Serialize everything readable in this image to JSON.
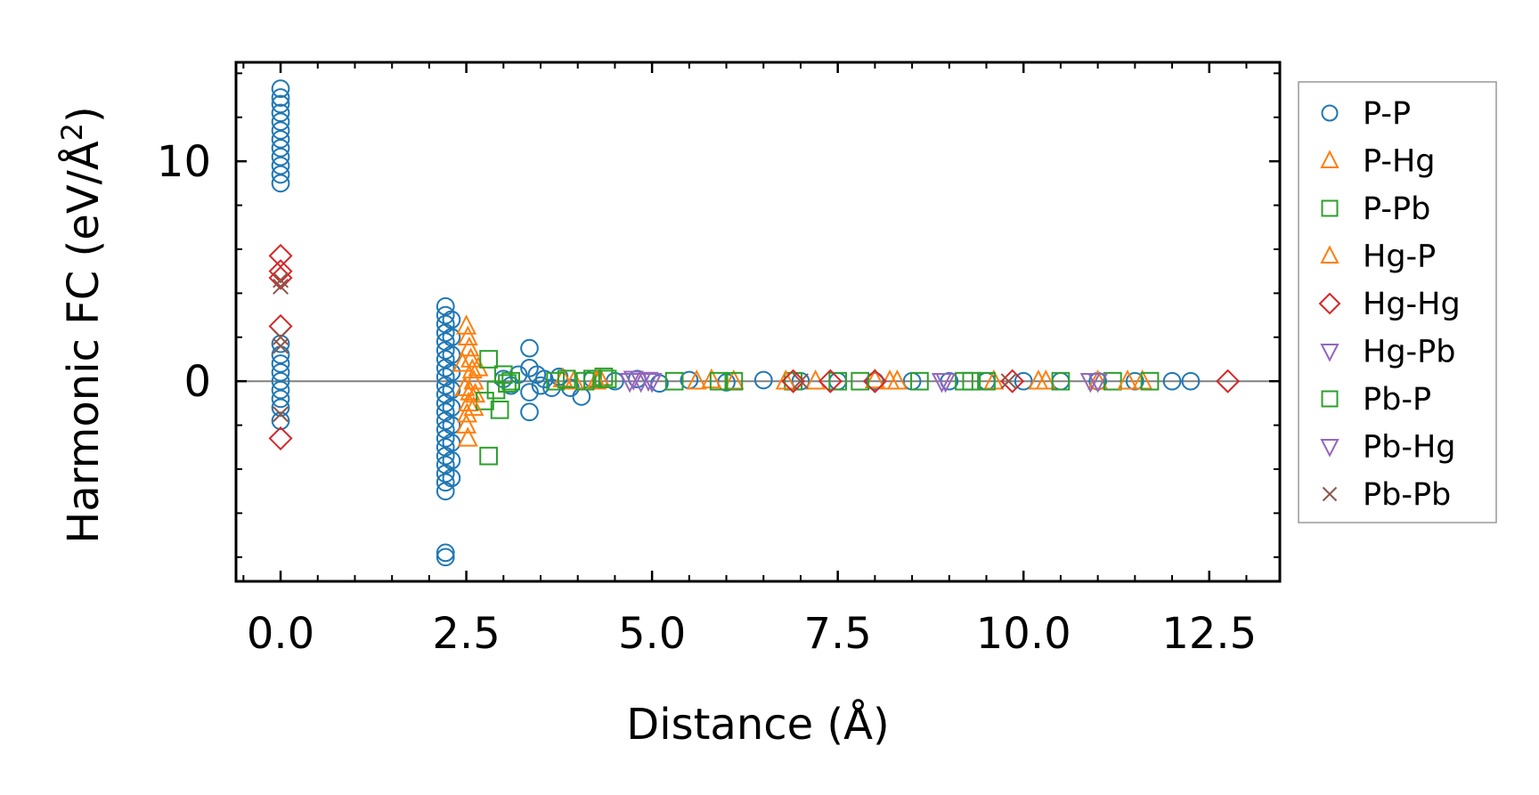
{
  "chart_data": {
    "type": "scatter",
    "title": "",
    "xlabel": "Distance (Å)",
    "ylabel_main": "Harmonic FC (eV/Å",
    "ylabel_sup": "2",
    "ylabel_close": ")",
    "xlim": [
      -0.6,
      13.45
    ],
    "ylim": [
      -9.1,
      14.5
    ],
    "xticks": [
      0.0,
      2.5,
      5.0,
      7.5,
      10.0,
      12.5
    ],
    "xtick_labels": [
      "0.0",
      "2.5",
      "5.0",
      "7.5",
      "10.0",
      "12.5"
    ],
    "yticks": [
      0,
      10
    ],
    "ytick_labels": [
      "0",
      "10"
    ],
    "zero_line": true,
    "legend_position": "right-outside",
    "series": [
      {
        "name": "P-P",
        "color": "#1f77b4",
        "marker": "circle",
        "points": [
          [
            0,
            13.3
          ],
          [
            0,
            12.9
          ],
          [
            0,
            12.6
          ],
          [
            0,
            12.2
          ],
          [
            0,
            11.8
          ],
          [
            0,
            11.4
          ],
          [
            0,
            11.0
          ],
          [
            0,
            10.6
          ],
          [
            0,
            10.2
          ],
          [
            0,
            9.8
          ],
          [
            0,
            9.4
          ],
          [
            0,
            9.0
          ],
          [
            0,
            1.7
          ],
          [
            0,
            1.2
          ],
          [
            0,
            0.8
          ],
          [
            0,
            0.4
          ],
          [
            0,
            0.0
          ],
          [
            0,
            -0.4
          ],
          [
            0,
            -0.8
          ],
          [
            0,
            -1.2
          ],
          [
            0,
            -1.8
          ],
          [
            2.22,
            3.4
          ],
          [
            2.22,
            3.0
          ],
          [
            2.22,
            2.6
          ],
          [
            2.22,
            2.2
          ],
          [
            2.22,
            1.8
          ],
          [
            2.22,
            1.4
          ],
          [
            2.22,
            1.0
          ],
          [
            2.22,
            0.6
          ],
          [
            2.22,
            0.2
          ],
          [
            2.22,
            -0.2
          ],
          [
            2.22,
            -0.6
          ],
          [
            2.22,
            -1.0
          ],
          [
            2.22,
            -1.4
          ],
          [
            2.22,
            -1.8
          ],
          [
            2.22,
            -2.2
          ],
          [
            2.22,
            -2.6
          ],
          [
            2.22,
            -3.0
          ],
          [
            2.22,
            -3.4
          ],
          [
            2.22,
            -3.8
          ],
          [
            2.22,
            -4.2
          ],
          [
            2.22,
            -4.6
          ],
          [
            2.22,
            -5.0
          ],
          [
            2.22,
            -7.8
          ],
          [
            2.22,
            -8.0
          ],
          [
            2.3,
            2.8
          ],
          [
            2.3,
            2.0
          ],
          [
            2.3,
            1.2
          ],
          [
            2.3,
            0.4
          ],
          [
            2.3,
            -0.4
          ],
          [
            2.3,
            -1.2
          ],
          [
            2.3,
            -2.0
          ],
          [
            2.3,
            -2.8
          ],
          [
            2.3,
            -3.6
          ],
          [
            2.3,
            -4.4
          ],
          [
            3.0,
            0.1
          ],
          [
            3.1,
            -0.2
          ],
          [
            3.2,
            0.3
          ],
          [
            3.35,
            1.5
          ],
          [
            3.35,
            0.6
          ],
          [
            3.35,
            -0.5
          ],
          [
            3.35,
            -1.4
          ],
          [
            3.45,
            0.3
          ],
          [
            3.5,
            -0.2
          ],
          [
            3.55,
            0.1
          ],
          [
            3.65,
            -0.3
          ],
          [
            3.75,
            0.2
          ],
          [
            3.9,
            -0.3
          ],
          [
            4.05,
            -0.7
          ],
          [
            4.2,
            0.1
          ],
          [
            4.5,
            0.0
          ],
          [
            4.8,
            0.1
          ],
          [
            5.1,
            -0.1
          ],
          [
            5.5,
            0.05
          ],
          [
            6.0,
            -0.05
          ],
          [
            6.5,
            0.05
          ],
          [
            7.0,
            0.0
          ],
          [
            7.5,
            0.0
          ],
          [
            8.0,
            0.0
          ],
          [
            8.5,
            0.0
          ],
          [
            9.0,
            0.0
          ],
          [
            9.5,
            0.0
          ],
          [
            10.0,
            0.0
          ],
          [
            10.5,
            0.0
          ],
          [
            11.0,
            0.0
          ],
          [
            11.5,
            0.0
          ],
          [
            12.0,
            0.0
          ],
          [
            12.25,
            0.0
          ]
        ]
      },
      {
        "name": "P-Hg",
        "color": "#ff7f0e",
        "marker": "triangle-up",
        "points": [
          [
            2.5,
            2.5
          ],
          [
            2.52,
            2.0
          ],
          [
            2.54,
            1.5
          ],
          [
            2.56,
            1.0
          ],
          [
            2.58,
            0.5
          ],
          [
            2.6,
            0.0
          ],
          [
            2.55,
            -0.5
          ],
          [
            2.53,
            -1.0
          ],
          [
            2.51,
            -1.5
          ],
          [
            2.5,
            -2.0
          ],
          [
            2.52,
            -2.6
          ],
          [
            2.62,
            -0.6
          ],
          [
            2.66,
            0.6
          ],
          [
            3.8,
            0.1
          ],
          [
            3.95,
            0.0
          ],
          [
            4.3,
            0.1
          ],
          [
            5.8,
            0.05
          ],
          [
            6.1,
            0.0
          ],
          [
            7.2,
            0.0
          ],
          [
            8.0,
            0.05
          ],
          [
            8.3,
            0.0
          ],
          [
            9.6,
            0.0
          ],
          [
            10.3,
            0.0
          ],
          [
            11.0,
            0.0
          ],
          [
            11.6,
            0.0
          ]
        ]
      },
      {
        "name": "P-Pb",
        "color": "#2ca02c",
        "marker": "square",
        "points": [
          [
            2.8,
            1.0
          ],
          [
            2.8,
            -3.4
          ],
          [
            2.75,
            -0.9
          ],
          [
            2.95,
            -1.3
          ],
          [
            3.0,
            0.3
          ],
          [
            3.1,
            0.0
          ],
          [
            3.7,
            0.0
          ],
          [
            3.85,
            0.1
          ],
          [
            4.2,
            0.1
          ],
          [
            4.35,
            0.2
          ],
          [
            5.3,
            0.0
          ],
          [
            6.1,
            0.0
          ],
          [
            6.9,
            0.0
          ],
          [
            7.5,
            0.0
          ],
          [
            8.6,
            0.0
          ],
          [
            9.2,
            0.0
          ],
          [
            9.5,
            0.0
          ],
          [
            10.5,
            0.0
          ],
          [
            11.2,
            0.0
          ],
          [
            11.7,
            0.0
          ]
        ]
      },
      {
        "name": "Hg-P",
        "color": "#ff7f0e",
        "marker": "triangle-up",
        "points": [
          [
            2.45,
            0.8
          ],
          [
            2.48,
            -0.3
          ],
          [
            2.6,
            -1.2
          ],
          [
            4.25,
            0.0
          ],
          [
            5.6,
            0.0
          ],
          [
            6.8,
            0.0
          ],
          [
            8.2,
            0.0
          ],
          [
            10.2,
            0.0
          ],
          [
            11.4,
            0.0
          ]
        ]
      },
      {
        "name": "Hg-Hg",
        "color": "#d62728",
        "marker": "diamond",
        "points": [
          [
            0,
            5.7
          ],
          [
            0,
            5.0
          ],
          [
            0,
            4.7
          ],
          [
            0,
            2.5
          ],
          [
            0,
            -2.6
          ],
          [
            6.9,
            0.0
          ],
          [
            7.4,
            0.0
          ],
          [
            8.0,
            0.0
          ],
          [
            9.85,
            0.0
          ],
          [
            12.75,
            0.0
          ]
        ]
      },
      {
        "name": "Hg-Pb",
        "color": "#9467bd",
        "marker": "triangle-down",
        "points": [
          [
            4.7,
            0.0
          ],
          [
            4.85,
            0.0
          ],
          [
            5.0,
            0.0
          ],
          [
            8.9,
            0.0
          ],
          [
            10.9,
            0.0
          ]
        ]
      },
      {
        "name": "Pb-P",
        "color": "#2ca02c",
        "marker": "square",
        "points": [
          [
            2.9,
            -0.4
          ],
          [
            3.05,
            -0.1
          ],
          [
            4.1,
            0.0
          ],
          [
            4.4,
            0.1
          ],
          [
            5.9,
            0.0
          ],
          [
            7.8,
            0.0
          ],
          [
            9.3,
            0.0
          ]
        ]
      },
      {
        "name": "Pb-Hg",
        "color": "#9467bd",
        "marker": "triangle-down",
        "points": [
          [
            4.75,
            0.1
          ],
          [
            4.95,
            0.05
          ],
          [
            8.95,
            0.0
          ],
          [
            11.0,
            0.0
          ]
        ]
      },
      {
        "name": "Pb-Pb",
        "color": "#8c564b",
        "marker": "x",
        "points": [
          [
            0,
            4.3
          ],
          [
            0,
            4.6
          ],
          [
            0,
            1.6
          ],
          [
            0,
            2.0
          ],
          [
            0,
            -1.5
          ],
          [
            7.0,
            0.0
          ],
          [
            9.8,
            0.0
          ]
        ]
      }
    ]
  }
}
